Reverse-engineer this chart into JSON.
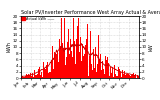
{
  "title": "Solar PV/Inverter Performance West Array Actual & Average Power Output",
  "legend_label": "Actual kWh ——",
  "ylabel_left": "kWh",
  "ylabel_right": "kW",
  "bg_color": "#ffffff",
  "plot_bg_color": "#ffffff",
  "grid_color": "#bbbbbb",
  "bar_color": "#ff0000",
  "avg_color": "#cc0000",
  "ylim": [
    0,
    20
  ],
  "yticks": [
    0,
    2,
    4,
    6,
    8,
    10,
    12,
    14,
    16,
    18,
    20
  ],
  "num_points": 365,
  "seed": 12,
  "title_fontsize": 3.5,
  "tick_fontsize": 3.0,
  "label_fontsize": 3.5
}
